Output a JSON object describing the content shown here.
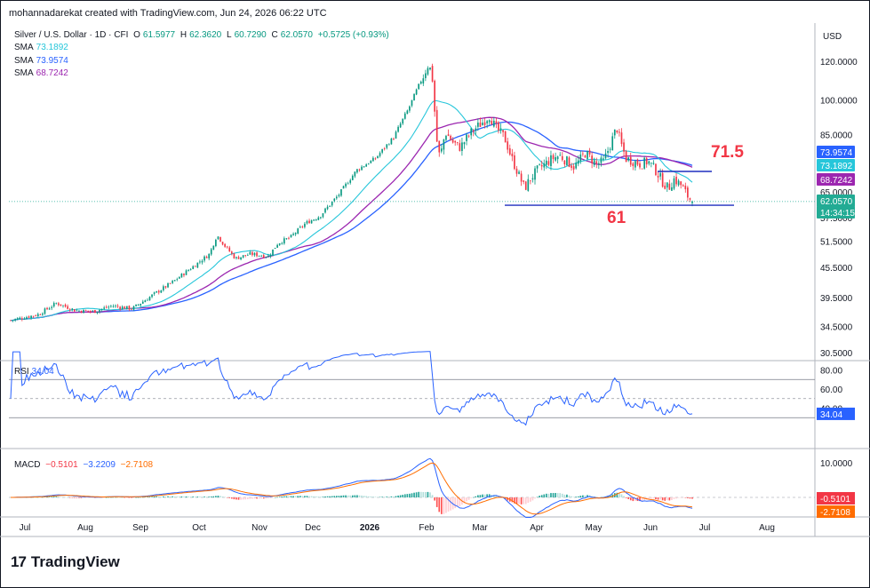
{
  "header": {
    "created_line": "mohannadarekat created with TradingView.com, Jun 24, 2026 06:22 UTC"
  },
  "legend": {
    "symbol": "Silver / U.S. Dollar · 1D · CFI",
    "o_label": "O",
    "o_value": "61.5977",
    "h_label": "H",
    "h_value": "62.3620",
    "l_label": "L",
    "l_value": "60.7290",
    "c_label": "C",
    "c_value": "62.0570",
    "change": "+0.5725 (+0.93%)",
    "sma": [
      {
        "label": "SMA",
        "value": "73.1892",
        "color": "#26c6da"
      },
      {
        "label": "SMA",
        "value": "73.9574",
        "color": "#2962ff"
      },
      {
        "label": "SMA",
        "value": "68.7242",
        "color": "#9c27b0"
      }
    ]
  },
  "currency": "USD",
  "price_badges": [
    {
      "text": "73.9574",
      "color": "#2962ff"
    },
    {
      "text": "73.1892",
      "color": "#26c6da"
    },
    {
      "text": "68.7242",
      "color": "#9c27b0"
    },
    {
      "text": "62.0570",
      "color": "#22ab94"
    },
    {
      "text": "14:34:15",
      "color": "#22ab94"
    }
  ],
  "annotations": {
    "resistance": "71.5",
    "support": "61"
  },
  "rsi": {
    "label": "RSI",
    "value": "34.04",
    "ticks": [
      "80.00",
      "60.00",
      "40.00"
    ]
  },
  "macd": {
    "label": "MACD",
    "values": [
      "−0.5101",
      "−3.2209",
      "−2.7108"
    ],
    "colors": [
      "#f23645",
      "#2962ff",
      "#ff6d00"
    ],
    "badges": [
      {
        "text": "-0.5101",
        "color": "#f23645"
      },
      {
        "text": "-2.7108",
        "color": "#ff6d00"
      }
    ],
    "ticks": [
      "10.0000"
    ]
  },
  "brand": "TradingView",
  "chart_data": {
    "type": "candlestick",
    "title": "Silver / U.S. Dollar · 1D · CFI",
    "y_scale": "log",
    "y_ticks": [
      "120.0000",
      "100.0000",
      "85.0000",
      "73.5000",
      "65.0000",
      "57.5000",
      "51.5000",
      "45.5000",
      "39.5000",
      "34.5000",
      "30.5000"
    ],
    "x_ticks": [
      "Jul",
      "Aug",
      "Sep",
      "Oct",
      "Nov",
      "Dec",
      "2026",
      "Feb",
      "Mar",
      "Apr",
      "May",
      "Jun",
      "Jul",
      "Aug"
    ],
    "approx_closes": [
      {
        "x": "Jul",
        "y": 36
      },
      {
        "x": "Aug",
        "y": 38
      },
      {
        "x": "Sep",
        "y": 41
      },
      {
        "x": "Oct",
        "y": 47
      },
      {
        "x": "Oct late",
        "y": 53
      },
      {
        "x": "Nov",
        "y": 48
      },
      {
        "x": "Dec",
        "y": 58
      },
      {
        "x": "2026",
        "y": 75
      },
      {
        "x": "Jan end",
        "y": 118
      },
      {
        "x": "Feb",
        "y": 80
      },
      {
        "x": "Mar",
        "y": 90
      },
      {
        "x": "Mar end",
        "y": 65
      },
      {
        "x": "Apr",
        "y": 72
      },
      {
        "x": "May",
        "y": 75
      },
      {
        "x": "May mid",
        "y": 86
      },
      {
        "x": "Jun",
        "y": 76
      },
      {
        "x": "Jun 24",
        "y": 62.057
      }
    ],
    "horizontal_lines": [
      71.5,
      61
    ],
    "rsi_last": 34.04,
    "macd_last": {
      "macd": -3.2209,
      "signal": -2.7108,
      "histogram": -0.5101
    }
  }
}
